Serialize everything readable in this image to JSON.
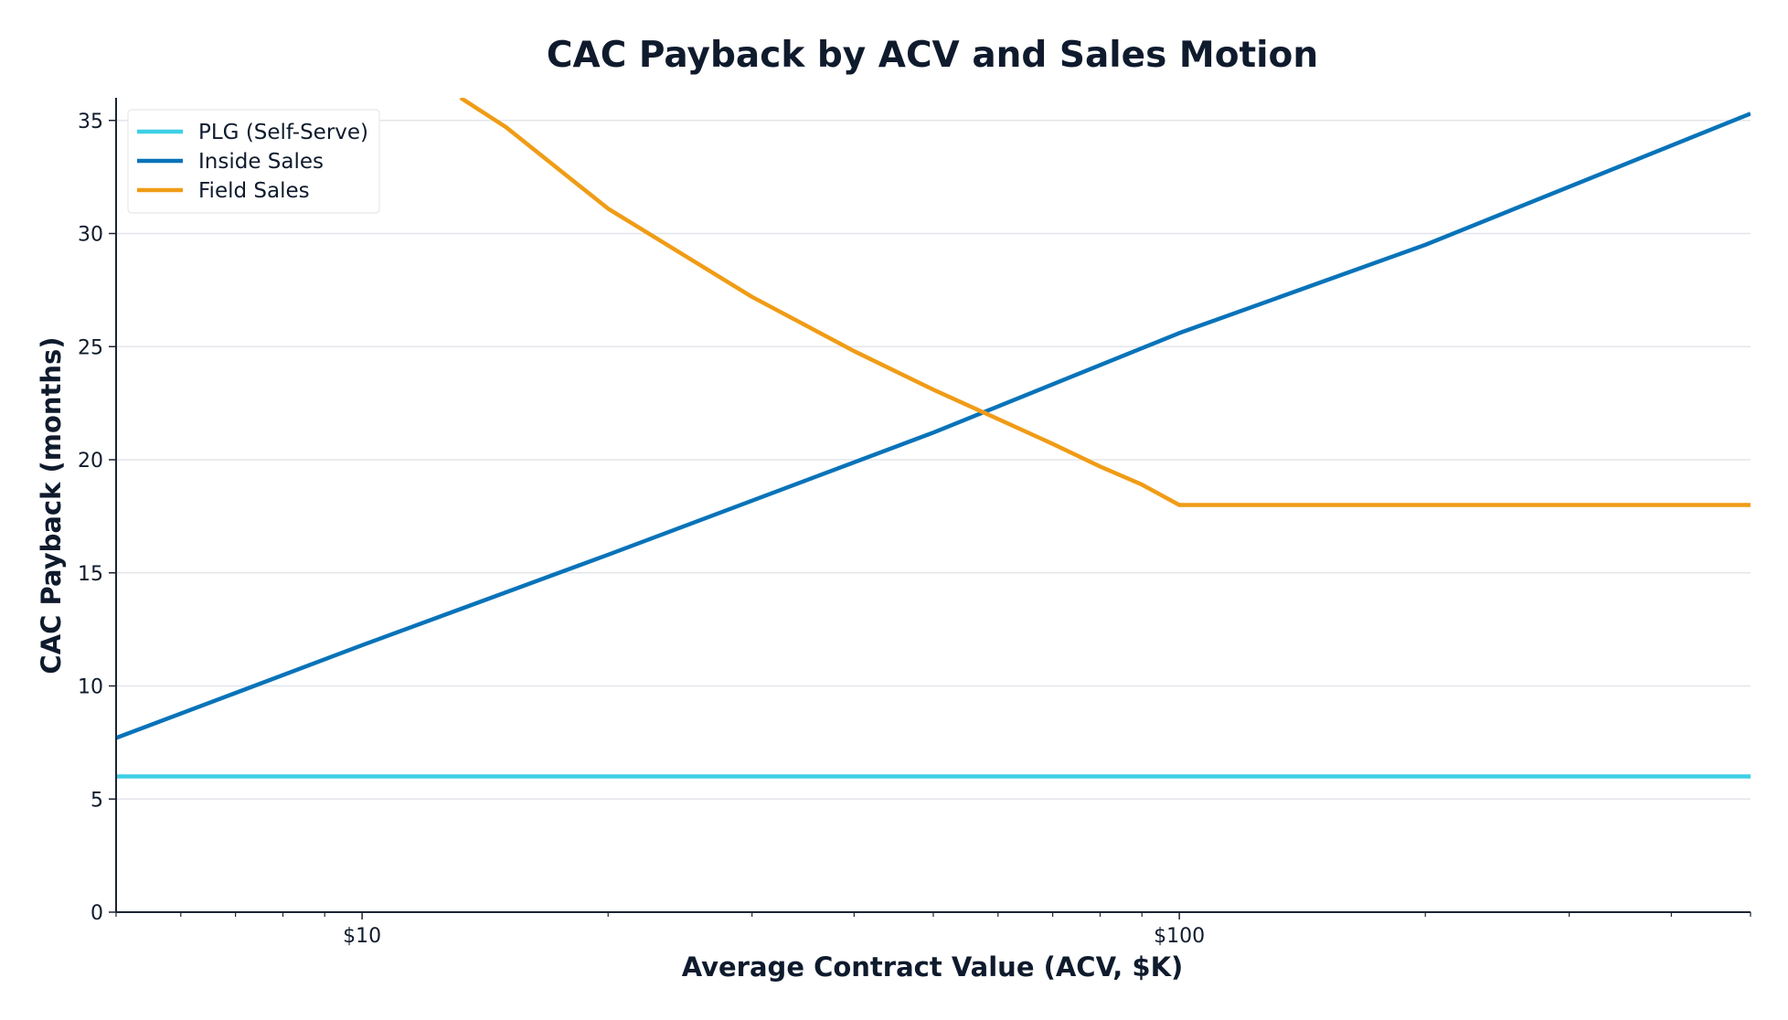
{
  "chart_data": {
    "type": "line",
    "title": "CAC Payback by ACV and Sales Motion",
    "xlabel": "Average Contract Value (ACV, $K)",
    "ylabel": "CAC Payback (months)",
    "x_scale": "log",
    "xlim": [
      5,
      500
    ],
    "ylim": [
      0,
      36
    ],
    "x_ticks": [
      10,
      100
    ],
    "x_tick_labels": [
      "$10",
      "$100"
    ],
    "y_ticks": [
      0,
      5,
      10,
      15,
      20,
      25,
      30,
      35
    ],
    "y_tick_labels": [
      "0",
      "5",
      "10",
      "15",
      "20",
      "25",
      "30",
      "35"
    ],
    "grid": "horizontal",
    "legend_position": "top-left",
    "series": [
      {
        "name": "PLG (Self-Serve)",
        "color": "#3ecfe6",
        "x": [
          5,
          10,
          20,
          50,
          100,
          200,
          500
        ],
        "y": [
          6,
          6,
          6,
          6,
          6,
          6,
          6
        ]
      },
      {
        "name": "Inside Sales",
        "color": "#0873b9",
        "x": [
          5,
          10,
          20,
          50,
          100,
          200,
          500
        ],
        "y": [
          7.7,
          11.8,
          15.8,
          21.2,
          25.6,
          29.5,
          35.3
        ]
      },
      {
        "name": "Field Sales",
        "color": "#f09c16",
        "x": [
          13.2,
          15,
          20,
          30,
          40,
          50,
          60,
          70,
          80,
          90,
          100,
          200,
          500
        ],
        "y": [
          36,
          34.7,
          31.1,
          27.2,
          24.8,
          23.1,
          21.8,
          20.7,
          19.7,
          18.9,
          18,
          18,
          18
        ]
      }
    ]
  }
}
